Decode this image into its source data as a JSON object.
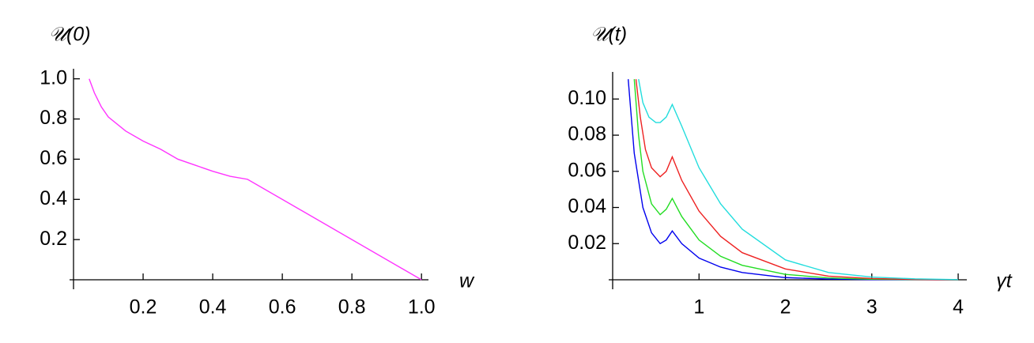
{
  "chart_data": [
    {
      "type": "line",
      "ylabel": "𝒰(0)",
      "xlabel": "w",
      "xlim": [
        0,
        1.02
      ],
      "ylim": [
        0,
        1.05
      ],
      "xticks": [
        0.2,
        0.4,
        0.6,
        0.8,
        {
          "value": 1,
          "label": "1.0"
        }
      ],
      "yticks": [
        0.2,
        0.4,
        0.6,
        0.8,
        {
          "value": 1,
          "label": "1.0"
        }
      ],
      "series": [
        {
          "color": "#ff33ff",
          "x": [
            0.045,
            0.06,
            0.08,
            0.1,
            0.15,
            0.2,
            0.25,
            0.3,
            0.35,
            0.4,
            0.45,
            0.5,
            1.0
          ],
          "values": [
            1.0,
            0.93,
            0.86,
            0.81,
            0.74,
            0.69,
            0.65,
            0.6,
            0.57,
            0.54,
            0.515,
            0.5,
            0
          ]
        }
      ]
    },
    {
      "type": "line",
      "ylabel": "𝒰(t)",
      "xlabel": "γt",
      "xlim": [
        0,
        4.1
      ],
      "ylim": [
        0,
        0.115
      ],
      "xticks": [
        1,
        2,
        3,
        4
      ],
      "yticks": [
        0.02,
        0.04,
        0.06,
        0.08,
        {
          "value": 0.1,
          "label": "0.10"
        }
      ],
      "series": [
        {
          "color": "#0000ee",
          "x": [
            0.18,
            0.25,
            0.35,
            0.45,
            0.55,
            0.62,
            0.69,
            0.8,
            1.0,
            1.25,
            1.5,
            2,
            2.5,
            3,
            4
          ],
          "values": [
            0.111,
            0.07,
            0.04,
            0.026,
            0.02,
            0.022,
            0.027,
            0.02,
            0.012,
            0.007,
            0.004,
            0.0012,
            0.0004,
            0.0001,
            0
          ]
        },
        {
          "color": "#22dd22",
          "x": [
            0.25,
            0.3,
            0.35,
            0.45,
            0.55,
            0.62,
            0.69,
            0.8,
            1.0,
            1.25,
            1.5,
            2,
            2.5,
            3,
            4
          ],
          "values": [
            0.111,
            0.08,
            0.06,
            0.042,
            0.036,
            0.039,
            0.045,
            0.035,
            0.022,
            0.013,
            0.008,
            0.003,
            0.001,
            0.0003,
            0
          ]
        },
        {
          "color": "#ee2222",
          "x": [
            0.27,
            0.32,
            0.38,
            0.45,
            0.55,
            0.62,
            0.69,
            0.8,
            1.0,
            1.25,
            1.5,
            2,
            2.5,
            3,
            3.5,
            4
          ],
          "values": [
            0.111,
            0.09,
            0.072,
            0.062,
            0.057,
            0.06,
            0.068,
            0.055,
            0.038,
            0.024,
            0.015,
            0.006,
            0.002,
            0.0007,
            0.0002,
            0
          ]
        },
        {
          "color": "#22dddd",
          "x": [
            0.3,
            0.35,
            0.42,
            0.5,
            0.55,
            0.62,
            0.69,
            0.8,
            1.0,
            1.25,
            1.5,
            2,
            2.5,
            3,
            3.5,
            4
          ],
          "values": [
            0.111,
            0.098,
            0.09,
            0.087,
            0.087,
            0.09,
            0.097,
            0.085,
            0.062,
            0.042,
            0.028,
            0.011,
            0.004,
            0.0015,
            0.0005,
            0.0001
          ]
        }
      ]
    }
  ]
}
